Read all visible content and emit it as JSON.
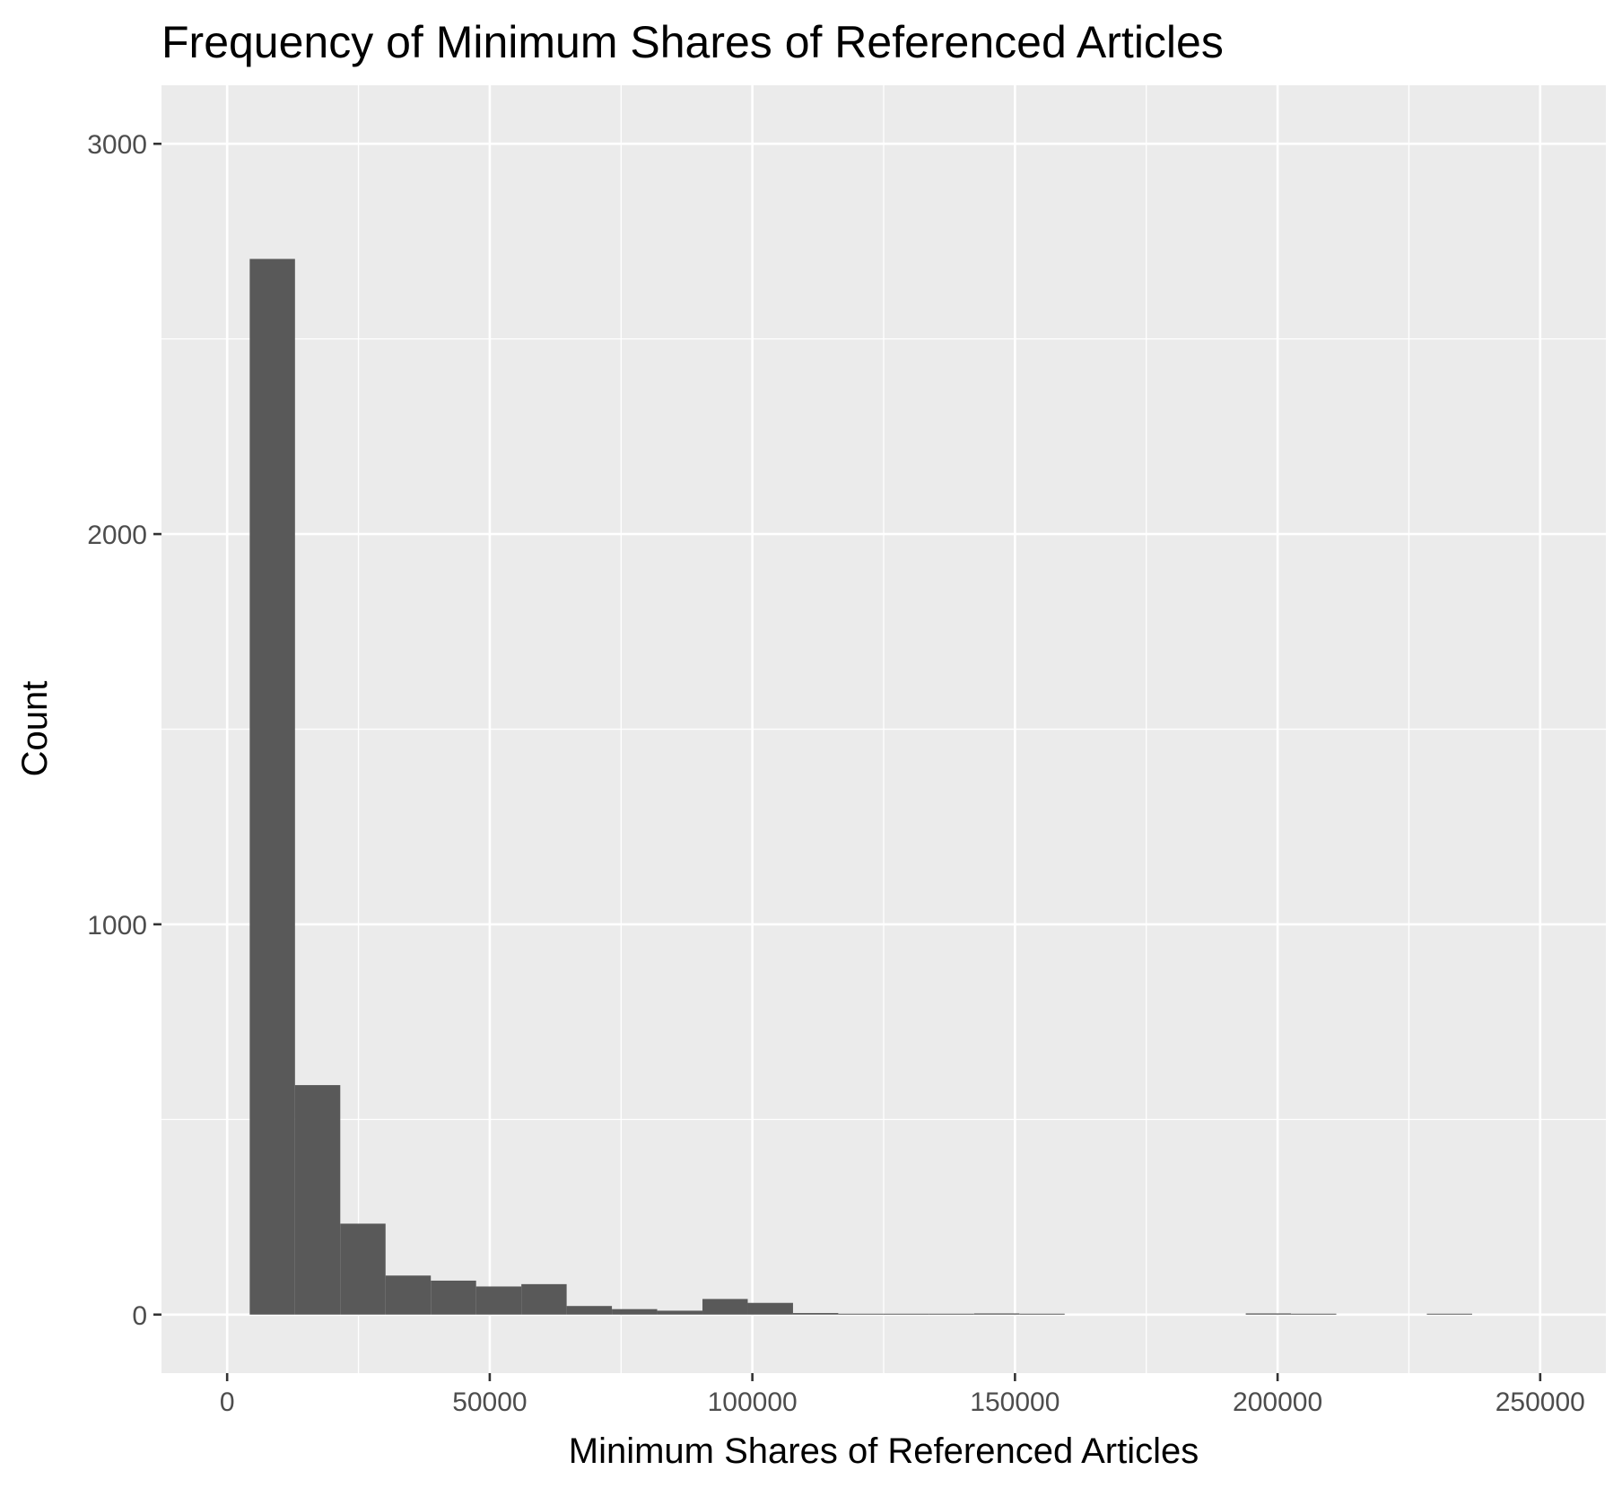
{
  "chart_data": {
    "type": "bar",
    "subtype": "histogram",
    "title": "Frequency of Minimum Shares of Referenced Articles",
    "xlabel": "Minimum Shares of Referenced Articles",
    "ylabel": "Count",
    "xlim": [
      -12500,
      262500
    ],
    "ylim": [
      -150,
      3150
    ],
    "x_ticks": [
      0,
      50000,
      100000,
      150000,
      200000,
      250000
    ],
    "x_tick_labels": [
      "0",
      "50000",
      "100000",
      "150000",
      "200000",
      "250000"
    ],
    "y_ticks": [
      0,
      1000,
      2000,
      3000
    ],
    "y_tick_labels": [
      "0",
      "1000",
      "2000",
      "3000"
    ],
    "bin_width": 8620,
    "bins": [
      {
        "x_start": 4300,
        "x_end": 12920,
        "count": 2705
      },
      {
        "x_start": 12920,
        "x_end": 21540,
        "count": 588
      },
      {
        "x_start": 21540,
        "x_end": 30160,
        "count": 233
      },
      {
        "x_start": 30160,
        "x_end": 38780,
        "count": 100
      },
      {
        "x_start": 38780,
        "x_end": 47400,
        "count": 87
      },
      {
        "x_start": 47400,
        "x_end": 56020,
        "count": 72
      },
      {
        "x_start": 56020,
        "x_end": 64640,
        "count": 78
      },
      {
        "x_start": 64640,
        "x_end": 73260,
        "count": 22
      },
      {
        "x_start": 73260,
        "x_end": 81880,
        "count": 14
      },
      {
        "x_start": 81880,
        "x_end": 90500,
        "count": 10
      },
      {
        "x_start": 90500,
        "x_end": 99120,
        "count": 40
      },
      {
        "x_start": 99120,
        "x_end": 107740,
        "count": 30
      },
      {
        "x_start": 107740,
        "x_end": 116360,
        "count": 4
      },
      {
        "x_start": 116360,
        "x_end": 124980,
        "count": 1
      },
      {
        "x_start": 124980,
        "x_end": 133600,
        "count": 1
      },
      {
        "x_start": 133600,
        "x_end": 142220,
        "count": 2
      },
      {
        "x_start": 142220,
        "x_end": 150840,
        "count": 3
      },
      {
        "x_start": 150840,
        "x_end": 159460,
        "count": 2
      },
      {
        "x_start": 159460,
        "x_end": 168080,
        "count": 0
      },
      {
        "x_start": 168080,
        "x_end": 176700,
        "count": 0
      },
      {
        "x_start": 176700,
        "x_end": 185320,
        "count": 0
      },
      {
        "x_start": 185320,
        "x_end": 193940,
        "count": 0
      },
      {
        "x_start": 193940,
        "x_end": 202560,
        "count": 3
      },
      {
        "x_start": 202560,
        "x_end": 211180,
        "count": 2
      },
      {
        "x_start": 211180,
        "x_end": 219800,
        "count": 0
      },
      {
        "x_start": 219800,
        "x_end": 228420,
        "count": 0
      },
      {
        "x_start": 228420,
        "x_end": 237040,
        "count": 1
      }
    ],
    "grid": true,
    "colors": {
      "panel_background": "#ebebeb",
      "grid_line": "#ffffff",
      "bar_fill": "#595959",
      "tick_mark": "#333333"
    }
  }
}
